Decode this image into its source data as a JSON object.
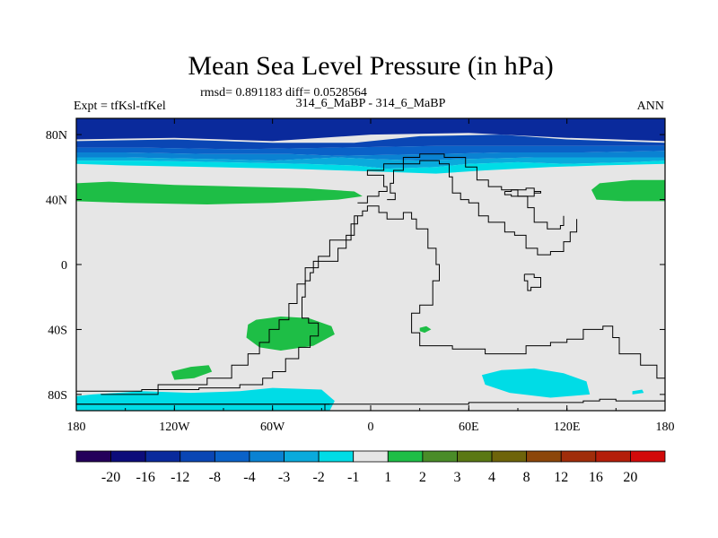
{
  "chart_data": {
    "type": "heatmap",
    "title": "Mean Sea Level Pressure (in hPa)",
    "stats_label": "rmsd= 0.891183 diff= 0.0528564",
    "left_label": "Expt = tfKsl-tfKel",
    "center_label": "314_6_MaBP - 314_6_MaBP",
    "right_label": "ANN",
    "xlim": [
      -180,
      180
    ],
    "ylim": [
      -90,
      90
    ],
    "x_ticks": [
      {
        "value": -180,
        "label": "180"
      },
      {
        "value": -120,
        "label": "120W"
      },
      {
        "value": -60,
        "label": "60W"
      },
      {
        "value": 0,
        "label": "0"
      },
      {
        "value": 60,
        "label": "60E"
      },
      {
        "value": 120,
        "label": "120E"
      },
      {
        "value": 180,
        "label": "180"
      }
    ],
    "y_ticks": [
      {
        "value": 80,
        "label": "80N"
      },
      {
        "value": 40,
        "label": "40N"
      },
      {
        "value": 0,
        "label": "0"
      },
      {
        "value": -40,
        "label": "40S"
      },
      {
        "value": -80,
        "label": "80S"
      }
    ],
    "colorbar": {
      "labels": [
        "-20",
        "-16",
        "-12",
        "-8",
        "-4",
        "-3",
        "-2",
        "-1",
        "1",
        "2",
        "3",
        "4",
        "8",
        "12",
        "16",
        "20"
      ],
      "colors": [
        "#24005a",
        "#0c0c7a",
        "#0a2a9c",
        "#0a46b4",
        "#0a62c8",
        "#0a82d2",
        "#0aaadc",
        "#00dce6",
        "#e6e6e6",
        "#1ebe46",
        "#4a8c28",
        "#5a7814",
        "#6e640a",
        "#8c460a",
        "#a02d0a",
        "#b41e0a",
        "#d20a0a"
      ]
    },
    "background_color": "#e6e6e6",
    "regions": [
      {
        "name": "north-band-minus12",
        "color": "#0a2a9c",
        "points": [
          [
            -180,
            90
          ],
          [
            180,
            90
          ],
          [
            180,
            76
          ],
          [
            120,
            78
          ],
          [
            60,
            81
          ],
          [
            0,
            80
          ],
          [
            -60,
            76
          ],
          [
            -120,
            78
          ],
          [
            -180,
            77
          ]
        ]
      },
      {
        "name": "north-band-minus8",
        "color": "#0a46b4",
        "points": [
          [
            -180,
            76
          ],
          [
            -120,
            77
          ],
          [
            -60,
            75
          ],
          [
            -10,
            75
          ],
          [
            30,
            79
          ],
          [
            80,
            80
          ],
          [
            120,
            77
          ],
          [
            180,
            75
          ],
          [
            180,
            73
          ],
          [
            120,
            73
          ],
          [
            40,
            73
          ],
          [
            -20,
            72
          ],
          [
            -80,
            71
          ],
          [
            -140,
            72
          ],
          [
            -180,
            72
          ]
        ]
      },
      {
        "name": "north-band-minus4",
        "color": "#0a62c8",
        "points": [
          [
            -180,
            72
          ],
          [
            -140,
            72
          ],
          [
            -80,
            71
          ],
          [
            -20,
            72
          ],
          [
            40,
            73
          ],
          [
            120,
            73
          ],
          [
            180,
            73
          ],
          [
            180,
            70
          ],
          [
            130,
            69
          ],
          [
            80,
            69
          ],
          [
            40,
            68
          ],
          [
            -20,
            67
          ],
          [
            -50,
            68
          ],
          [
            -100,
            68
          ],
          [
            -150,
            69
          ],
          [
            -180,
            69
          ]
        ]
      },
      {
        "name": "north-band-minus3",
        "color": "#0a82d2",
        "points": [
          [
            -180,
            69
          ],
          [
            -150,
            69
          ],
          [
            -100,
            68
          ],
          [
            -50,
            68
          ],
          [
            -20,
            67
          ],
          [
            40,
            68
          ],
          [
            80,
            69
          ],
          [
            130,
            69
          ],
          [
            180,
            70
          ],
          [
            180,
            66
          ],
          [
            160,
            66
          ],
          [
            100,
            66
          ],
          [
            60,
            65
          ],
          [
            30,
            64
          ],
          [
            0,
            65
          ],
          [
            -20,
            66
          ],
          [
            -60,
            64
          ],
          [
            -100,
            65
          ],
          [
            -150,
            66
          ],
          [
            -180,
            66
          ]
        ]
      },
      {
        "name": "north-band-minus2",
        "color": "#0aaadc",
        "points": [
          [
            -180,
            66
          ],
          [
            -150,
            66
          ],
          [
            -100,
            65
          ],
          [
            -60,
            64
          ],
          [
            -20,
            66
          ],
          [
            0,
            65
          ],
          [
            30,
            64
          ],
          [
            60,
            65
          ],
          [
            100,
            66
          ],
          [
            160,
            66
          ],
          [
            180,
            66
          ],
          [
            180,
            64
          ],
          [
            160,
            63
          ],
          [
            120,
            62
          ],
          [
            90,
            63
          ],
          [
            60,
            62
          ],
          [
            40,
            60
          ],
          [
            10,
            59
          ],
          [
            -10,
            61
          ],
          [
            -40,
            62
          ],
          [
            -90,
            63
          ],
          [
            -140,
            64
          ],
          [
            -180,
            64
          ]
        ]
      },
      {
        "name": "north-band-minus1",
        "color": "#00dce6",
        "points": [
          [
            -180,
            64
          ],
          [
            -140,
            64
          ],
          [
            -90,
            63
          ],
          [
            -40,
            62
          ],
          [
            -10,
            61
          ],
          [
            10,
            59
          ],
          [
            40,
            60
          ],
          [
            60,
            62
          ],
          [
            90,
            63
          ],
          [
            120,
            62
          ],
          [
            160,
            63
          ],
          [
            180,
            64
          ],
          [
            180,
            62
          ],
          [
            140,
            61
          ],
          [
            110,
            60
          ],
          [
            70,
            58
          ],
          [
            40,
            56
          ],
          [
            10,
            57
          ],
          [
            -20,
            58
          ],
          [
            -50,
            59
          ],
          [
            -100,
            60
          ],
          [
            -150,
            61
          ],
          [
            -180,
            62
          ]
        ]
      },
      {
        "name": "green-west-pacific-atlantic",
        "color": "#1ebe46",
        "points": [
          [
            -180,
            50
          ],
          [
            -160,
            51
          ],
          [
            -120,
            49
          ],
          [
            -80,
            48
          ],
          [
            -40,
            47
          ],
          [
            -10,
            45
          ],
          [
            -5,
            42
          ],
          [
            -20,
            40
          ],
          [
            -60,
            38
          ],
          [
            -100,
            37
          ],
          [
            -150,
            38
          ],
          [
            -180,
            39
          ]
        ]
      },
      {
        "name": "green-east-pacific",
        "color": "#1ebe46",
        "points": [
          [
            180,
            52
          ],
          [
            160,
            52
          ],
          [
            140,
            50
          ],
          [
            135,
            46
          ],
          [
            138,
            40
          ],
          [
            155,
            39
          ],
          [
            180,
            39
          ]
        ]
      },
      {
        "name": "green-south-atlantic",
        "color": "#1ebe46",
        "points": [
          [
            -75,
            -37
          ],
          [
            -70,
            -34
          ],
          [
            -55,
            -32
          ],
          [
            -38,
            -33
          ],
          [
            -24,
            -38
          ],
          [
            -22,
            -43
          ],
          [
            -35,
            -50
          ],
          [
            -55,
            -53
          ],
          [
            -68,
            -51
          ],
          [
            -76,
            -45
          ]
        ]
      },
      {
        "name": "green-drake",
        "color": "#1ebe46",
        "points": [
          [
            -122,
            -66
          ],
          [
            -110,
            -63
          ],
          [
            -99,
            -62
          ],
          [
            -97,
            -66
          ],
          [
            -108,
            -70
          ],
          [
            -120,
            -71
          ]
        ]
      },
      {
        "name": "green-spot",
        "color": "#1ebe46",
        "points": [
          [
            30,
            -39
          ],
          [
            34,
            -38
          ],
          [
            37,
            -40
          ],
          [
            33,
            -42
          ],
          [
            30,
            -41
          ]
        ]
      },
      {
        "name": "cyan-indian-ocean",
        "color": "#00dce6",
        "points": [
          [
            68,
            -68
          ],
          [
            80,
            -65
          ],
          [
            100,
            -64
          ],
          [
            118,
            -67
          ],
          [
            132,
            -72
          ],
          [
            134,
            -80
          ],
          [
            110,
            -82
          ],
          [
            85,
            -79
          ],
          [
            70,
            -74
          ]
        ]
      },
      {
        "name": "cyan-southern",
        "color": "#00dce6",
        "points": [
          [
            -180,
            -90
          ],
          [
            -25,
            -90
          ],
          [
            -22,
            -84
          ],
          [
            -30,
            -77
          ],
          [
            -60,
            -76
          ],
          [
            -80,
            -78
          ],
          [
            -110,
            -79
          ],
          [
            -140,
            -78
          ],
          [
            -170,
            -80
          ],
          [
            -180,
            -81
          ]
        ]
      },
      {
        "name": "cyan-spot-south-pacific",
        "color": "#00dce6",
        "points": [
          [
            160,
            -78
          ],
          [
            166,
            -77
          ],
          [
            167,
            -79
          ],
          [
            160,
            -80
          ]
        ]
      }
    ],
    "coastlines": [
      [
        [
          -28,
          -90
        ],
        [
          -28,
          -86
        ],
        [
          -180,
          -86
        ]
      ],
      [
        [
          180,
          -84
        ],
        [
          158,
          -84
        ],
        [
          150,
          -83
        ],
        [
          140,
          -84
        ],
        [
          130,
          -85
        ],
        [
          60,
          -86
        ],
        [
          -28,
          -86
        ]
      ],
      [
        [
          -25,
          -86
        ],
        [
          -180,
          -86
        ]
      ],
      [
        [
          -180,
          -78
        ],
        [
          -140,
          -77
        ],
        [
          -105,
          -76
        ],
        [
          -80,
          -74
        ],
        [
          -66,
          -70
        ],
        [
          -60,
          -66
        ],
        [
          -52,
          -58
        ],
        [
          -44,
          -51
        ],
        [
          -37,
          -44
        ],
        [
          -32,
          -36
        ],
        [
          -38,
          -33
        ],
        [
          -42,
          -26
        ],
        [
          -42,
          -20
        ],
        [
          -40,
          -10
        ],
        [
          -37,
          -5
        ],
        [
          -35,
          2
        ],
        [
          -20,
          10
        ],
        [
          -15,
          18
        ],
        [
          -10,
          30
        ],
        [
          -5,
          33
        ],
        [
          -2,
          36
        ],
        [
          5,
          32
        ],
        [
          10,
          28
        ],
        [
          20,
          32
        ],
        [
          25,
          28
        ],
        [
          28,
          22
        ],
        [
          35,
          10
        ],
        [
          40,
          0
        ],
        [
          42,
          -10
        ],
        [
          38,
          -25
        ],
        [
          30,
          -30
        ],
        [
          25,
          -42
        ],
        [
          30,
          -50
        ],
        [
          50,
          -52
        ],
        [
          70,
          -55
        ],
        [
          95,
          -50
        ],
        [
          110,
          -48
        ],
        [
          120,
          -46
        ],
        [
          130,
          -40
        ],
        [
          142,
          -38
        ],
        [
          148,
          -45
        ],
        [
          152,
          -55
        ],
        [
          165,
          -62
        ],
        [
          175,
          -70
        ],
        [
          180,
          -73
        ]
      ],
      [
        [
          -165,
          -80
        ],
        [
          -130,
          -74
        ],
        [
          -100,
          -70
        ],
        [
          -85,
          -62
        ],
        [
          -75,
          -55
        ],
        [
          -68,
          -48
        ],
        [
          -62,
          -40
        ],
        [
          -56,
          -34
        ],
        [
          -50,
          -24
        ],
        [
          -45,
          -12
        ],
        [
          -40,
          -2
        ],
        [
          -32,
          5
        ],
        [
          -25,
          15
        ],
        [
          -12,
          25
        ],
        [
          -8,
          30
        ]
      ],
      [
        [
          10,
          40
        ],
        [
          15,
          44
        ],
        [
          12,
          50
        ],
        [
          14,
          58
        ],
        [
          20,
          62
        ],
        [
          30,
          64
        ],
        [
          42,
          62
        ],
        [
          48,
          54
        ],
        [
          50,
          44
        ],
        [
          55,
          40
        ],
        [
          60,
          38
        ],
        [
          66,
          30
        ],
        [
          72,
          26
        ],
        [
          80,
          26
        ],
        [
          82,
          20
        ],
        [
          88,
          18
        ],
        [
          95,
          10
        ],
        [
          102,
          6
        ],
        [
          110,
          8
        ],
        [
          118,
          14
        ],
        [
          122,
          20
        ],
        [
          126,
          28
        ]
      ],
      [
        [
          -8,
          38
        ],
        [
          -2,
          42
        ],
        [
          5,
          45
        ],
        [
          10,
          48
        ],
        [
          8,
          55
        ],
        [
          -2,
          58
        ],
        [
          8,
          62
        ],
        [
          20,
          66
        ],
        [
          30,
          68
        ],
        [
          45,
          66
        ],
        [
          58,
          60
        ],
        [
          65,
          52
        ],
        [
          72,
          48
        ],
        [
          80,
          46
        ],
        [
          90,
          42
        ],
        [
          96,
          35
        ],
        [
          100,
          26
        ],
        [
          108,
          22
        ],
        [
          116,
          24
        ],
        [
          118,
          30
        ]
      ],
      [
        [
          82,
          45
        ],
        [
          86,
          46
        ],
        [
          95,
          47
        ],
        [
          100,
          44
        ],
        [
          104,
          45
        ],
        [
          100,
          42
        ],
        [
          92,
          42
        ],
        [
          86,
          43
        ],
        [
          82,
          45
        ]
      ],
      [
        [
          94,
          -6
        ],
        [
          100,
          -8
        ],
        [
          104,
          -14
        ],
        [
          98,
          -16
        ],
        [
          96,
          -10
        ],
        [
          94,
          -6
        ]
      ]
    ]
  }
}
